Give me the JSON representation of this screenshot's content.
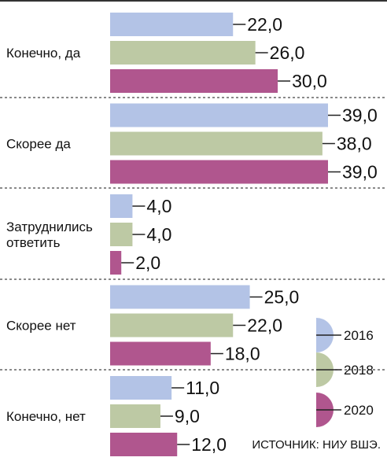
{
  "chart_data": {
    "type": "bar",
    "orientation": "horizontal",
    "categories": [
      "Конечно, да",
      "Скорее да",
      "Затруднились ответить",
      "Скорее нет",
      "Конечно, нет"
    ],
    "category_lines": [
      [
        "Конечно, да"
      ],
      [
        "Скорее да"
      ],
      [
        "Затруднились",
        "ответить"
      ],
      [
        "Скорее нет"
      ],
      [
        "Конечно, нет"
      ]
    ],
    "series": [
      {
        "name": "2016",
        "values": [
          22.0,
          39.0,
          4.0,
          25.0,
          11.0
        ],
        "value_labels": [
          "22,0",
          "39,0",
          "4,0",
          "25,0",
          "11,0"
        ],
        "color": "#b3c3e6"
      },
      {
        "name": "2018",
        "values": [
          26.0,
          38.0,
          4.0,
          22.0,
          9.0
        ],
        "value_labels": [
          "26,0",
          "38,0",
          "4,0",
          "22,0",
          "9,0"
        ],
        "color": "#bdc9a4"
      },
      {
        "name": "2020",
        "values": [
          30.0,
          39.0,
          2.0,
          18.0,
          12.0
        ],
        "value_labels": [
          "30,0",
          "39,0",
          "2,0",
          "18,0",
          "12,0"
        ],
        "color": "#b0568e"
      }
    ],
    "xlim": [
      0,
      39
    ],
    "grid": false,
    "legend_position": "bottom-right",
    "source_note": "ИСТОЧНИК: НИУ ВШЭ."
  }
}
